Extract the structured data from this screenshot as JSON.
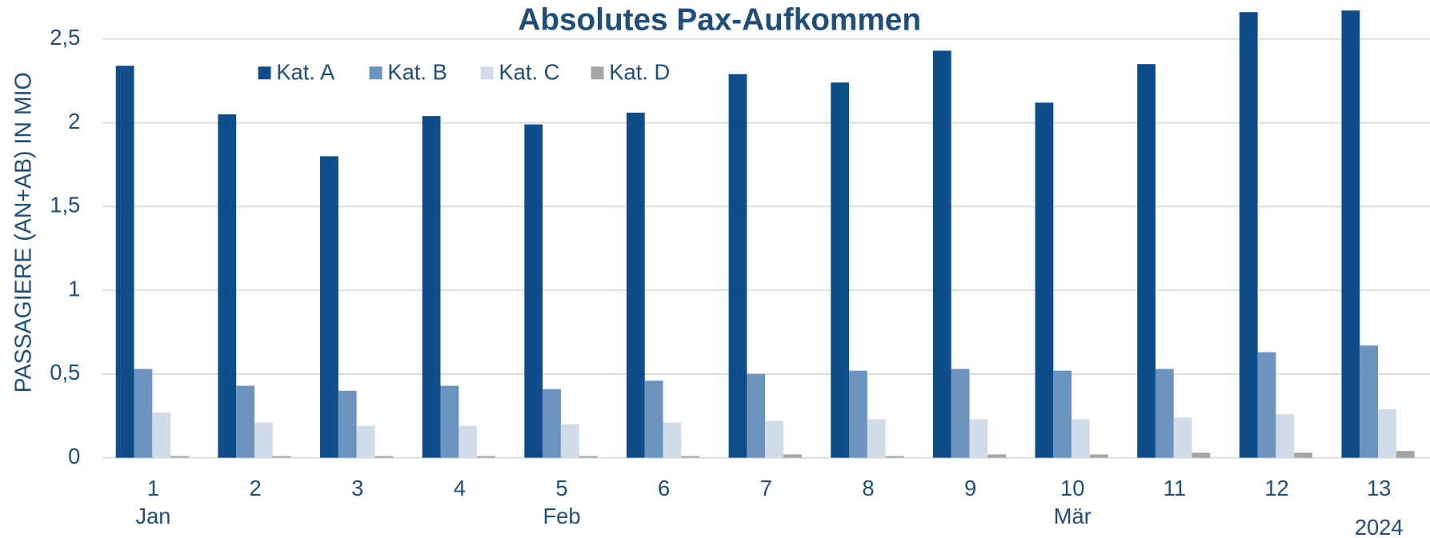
{
  "chart_data": {
    "type": "bar",
    "title": "Absolutes Pax-Aufkommen",
    "y_label": "PASSAGIERE (AN+AB) IN MIO",
    "categories": [
      "1",
      "2",
      "3",
      "4",
      "5",
      "6",
      "7",
      "8",
      "9",
      "10",
      "11",
      "12",
      "13"
    ],
    "months": [
      "Jan",
      null,
      null,
      null,
      "Feb",
      null,
      null,
      null,
      null,
      "Mär",
      null,
      null,
      null
    ],
    "years": [
      null,
      null,
      null,
      null,
      null,
      null,
      null,
      null,
      null,
      null,
      null,
      null,
      "2024"
    ],
    "series": [
      {
        "name": "Kat. A",
        "color": "#0f4c8a",
        "values": [
          2.34,
          2.05,
          1.8,
          2.04,
          1.99,
          2.06,
          2.29,
          2.24,
          2.43,
          2.12,
          2.35,
          2.66,
          2.67
        ]
      },
      {
        "name": "Kat. B",
        "color": "#6b93bd",
        "values": [
          0.53,
          0.43,
          0.4,
          0.43,
          0.41,
          0.46,
          0.5,
          0.52,
          0.53,
          0.52,
          0.53,
          0.63,
          0.67
        ]
      },
      {
        "name": "Kat. C",
        "color": "#d2dce8",
        "values": [
          0.27,
          0.21,
          0.19,
          0.19,
          0.2,
          0.21,
          0.22,
          0.23,
          0.23,
          0.23,
          0.24,
          0.26,
          0.29
        ]
      },
      {
        "name": "Kat. D",
        "color": "#a5a5a5",
        "values": [
          0.01,
          0.01,
          0.01,
          0.01,
          0.01,
          0.01,
          0.02,
          0.01,
          0.02,
          0.02,
          0.03,
          0.03,
          0.04
        ]
      }
    ],
    "ylim": [
      0,
      2.7
    ],
    "yticks": [
      0,
      {
        "value": 0.5,
        "label": "0,5"
      },
      1,
      {
        "value": 1.5,
        "label": "1,5"
      },
      2,
      {
        "value": 2.5,
        "label": "2,5"
      }
    ],
    "grid": true,
    "legend": "top"
  }
}
